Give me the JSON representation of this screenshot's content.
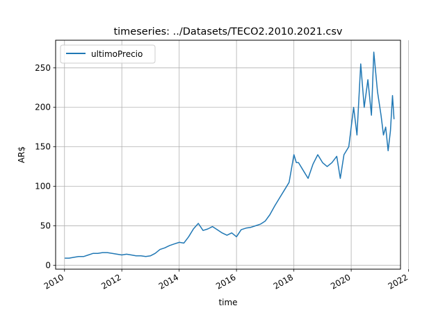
{
  "chart_data": {
    "type": "line",
    "title": "timeseries: ../Datasets/TECO2.2010.2021.csv",
    "xlabel": "time",
    "ylabel": "AR$",
    "xlim": [
      "2009-09-10",
      "2021-09-20"
    ],
    "ylim": [
      -5,
      285
    ],
    "grid": true,
    "legend_position": "upper-left",
    "x_ticks": [
      "2010",
      "2012",
      "2014",
      "2016",
      "2018",
      "2020",
      "2022"
    ],
    "y_ticks": [
      "0",
      "50",
      "100",
      "150",
      "200",
      "250"
    ],
    "series": [
      {
        "name": "ultimoPrecio",
        "color": "#1f77b4",
        "points": [
          [
            "2010-01-04",
            9
          ],
          [
            "2010-03-01",
            9
          ],
          [
            "2010-05-01",
            10
          ],
          [
            "2010-07-01",
            11
          ],
          [
            "2010-09-01",
            11
          ],
          [
            "2010-11-01",
            13
          ],
          [
            "2011-01-01",
            15
          ],
          [
            "2011-03-01",
            15
          ],
          [
            "2011-05-01",
            16
          ],
          [
            "2011-07-01",
            16
          ],
          [
            "2011-09-01",
            15
          ],
          [
            "2011-11-01",
            14
          ],
          [
            "2012-01-01",
            13
          ],
          [
            "2012-03-01",
            14
          ],
          [
            "2012-05-01",
            13
          ],
          [
            "2012-07-01",
            12
          ],
          [
            "2012-09-01",
            12
          ],
          [
            "2012-11-01",
            11
          ],
          [
            "2013-01-01",
            12
          ],
          [
            "2013-03-01",
            15
          ],
          [
            "2013-05-01",
            20
          ],
          [
            "2013-07-01",
            22
          ],
          [
            "2013-09-01",
            25
          ],
          [
            "2013-11-01",
            27
          ],
          [
            "2014-01-01",
            29
          ],
          [
            "2014-03-01",
            28
          ],
          [
            "2014-05-01",
            36
          ],
          [
            "2014-07-01",
            46
          ],
          [
            "2014-09-01",
            53
          ],
          [
            "2014-11-01",
            44
          ],
          [
            "2015-01-01",
            46
          ],
          [
            "2015-03-01",
            49
          ],
          [
            "2015-05-01",
            45
          ],
          [
            "2015-07-01",
            41
          ],
          [
            "2015-09-01",
            38
          ],
          [
            "2015-11-01",
            41
          ],
          [
            "2016-01-01",
            36
          ],
          [
            "2016-03-01",
            45
          ],
          [
            "2016-05-01",
            47
          ],
          [
            "2016-07-01",
            48
          ],
          [
            "2016-09-01",
            50
          ],
          [
            "2016-11-01",
            52
          ],
          [
            "2017-01-01",
            56
          ],
          [
            "2017-03-01",
            64
          ],
          [
            "2017-05-01",
            75
          ],
          [
            "2017-07-01",
            85
          ],
          [
            "2017-09-01",
            95
          ],
          [
            "2017-11-01",
            105
          ],
          [
            "2018-01-01",
            140
          ],
          [
            "2018-02-01",
            130
          ],
          [
            "2018-03-01",
            130
          ],
          [
            "2018-05-01",
            120
          ],
          [
            "2018-07-01",
            110
          ],
          [
            "2018-09-01",
            128
          ],
          [
            "2018-11-01",
            140
          ],
          [
            "2019-01-01",
            130
          ],
          [
            "2019-03-01",
            125
          ],
          [
            "2019-05-01",
            130
          ],
          [
            "2019-07-01",
            138
          ],
          [
            "2019-08-15",
            110
          ],
          [
            "2019-10-01",
            140
          ],
          [
            "2019-12-01",
            150
          ],
          [
            "2020-02-01",
            200
          ],
          [
            "2020-03-15",
            165
          ],
          [
            "2020-05-01",
            255
          ],
          [
            "2020-06-15",
            200
          ],
          [
            "2020-08-01",
            235
          ],
          [
            "2020-09-15",
            190
          ],
          [
            "2020-10-15",
            270
          ],
          [
            "2020-12-01",
            220
          ],
          [
            "2021-01-15",
            190
          ],
          [
            "2021-02-15",
            165
          ],
          [
            "2021-03-15",
            175
          ],
          [
            "2021-04-15",
            145
          ],
          [
            "2021-05-15",
            170
          ],
          [
            "2021-06-10",
            215
          ],
          [
            "2021-06-30",
            185
          ]
        ]
      }
    ]
  }
}
